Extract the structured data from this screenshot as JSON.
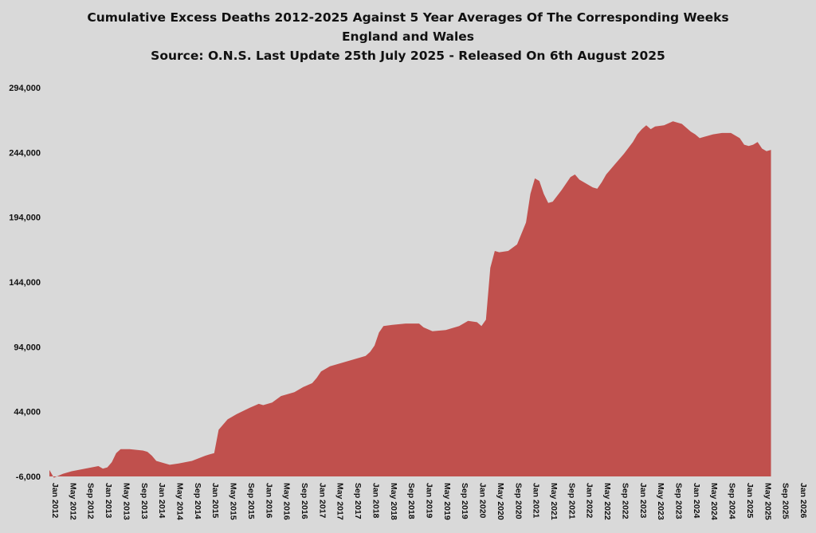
{
  "chart_data": {
    "type": "area",
    "title_lines": [
      "Cumulative Excess Deaths 2012-2025 Against 5 Year Averages Of The Corresponding Weeks",
      "England and Wales",
      "Source: O.N.S. Last Update 25th July 2025 - Released On 6th August 2025"
    ],
    "xlabel": "",
    "ylabel": "",
    "ylim": [
      -6000,
      294000
    ],
    "xlim": [
      "2012-01",
      "2026-01"
    ],
    "grid": false,
    "legend": "none",
    "colors": {
      "fill": "#c0504d",
      "background": "#d9d9d9",
      "text": "#111111"
    },
    "y_ticks": [
      "294,000",
      "244,000",
      "194,000",
      "144,000",
      "94,000",
      "44,000",
      "-6,000"
    ],
    "y_tick_values": [
      294000,
      244000,
      194000,
      144000,
      94000,
      44000,
      -6000
    ],
    "x_ticks": [
      "Jan 2012",
      "May 2012",
      "Sep 2012",
      "Jan 2013",
      "May 2013",
      "Sep 2013",
      "Jan 2014",
      "May 2014",
      "Sep 2014",
      "Jan 2015",
      "May 2015",
      "Sep 2015",
      "Jan 2016",
      "May 2016",
      "Sep 2016",
      "Jan 2017",
      "May 2017",
      "Sep 2017",
      "Jan 2018",
      "May 2018",
      "Sep 2018",
      "Jan 2019",
      "May 2019",
      "Sep 2019",
      "Jan 2020",
      "May 2020",
      "Sep 2020",
      "Jan 2021",
      "May 2021",
      "Sep 2021",
      "Jan 2022",
      "May 2022",
      "Sep 2022",
      "Jan 2023",
      "May 2023",
      "Sep 2023",
      "Jan 2024",
      "May 2024",
      "Sep 2024",
      "Jan 2025",
      "May 2025",
      "Sep 2025",
      "Jan 2026"
    ],
    "series": [
      {
        "x": [
          "2012-01",
          "2012-02",
          "2012-04",
          "2012-06",
          "2012-09",
          "2012-12",
          "2013-01",
          "2013-02",
          "2013-03",
          "2013-04",
          "2013-05",
          "2013-07",
          "2013-10",
          "2013-11",
          "2013-12",
          "2014-01",
          "2014-02",
          "2014-03",
          "2014-04",
          "2014-06",
          "2014-09",
          "2014-12",
          "2015-01",
          "2015-02",
          "2015-03",
          "2015-05",
          "2015-07",
          "2015-10",
          "2015-12",
          "2016-01",
          "2016-03",
          "2016-05",
          "2016-08",
          "2016-10",
          "2016-12",
          "2017-01",
          "2017-02",
          "2017-04",
          "2017-08",
          "2017-12",
          "2018-01",
          "2018-02",
          "2018-03",
          "2018-04",
          "2018-06",
          "2018-09",
          "2018-12",
          "2019-01",
          "2019-03",
          "2019-06",
          "2019-09",
          "2019-11",
          "2020-01",
          "2020-02",
          "2020-03",
          "2020-04",
          "2020-05",
          "2020-06",
          "2020-08",
          "2020-10",
          "2020-12",
          "2021-01",
          "2021-02",
          "2021-03",
          "2021-04",
          "2021-05",
          "2021-06",
          "2021-08",
          "2021-10",
          "2021-11",
          "2021-12",
          "2022-01",
          "2022-03",
          "2022-04",
          "2022-05",
          "2022-06",
          "2022-08",
          "2022-10",
          "2022-12",
          "2023-01",
          "2023-02",
          "2023-03",
          "2023-04",
          "2023-05",
          "2023-07",
          "2023-09",
          "2023-11",
          "2023-12",
          "2024-01",
          "2024-02",
          "2024-03",
          "2024-04",
          "2024-06",
          "2024-08",
          "2024-10",
          "2024-12",
          "2025-01",
          "2025-02",
          "2025-03",
          "2025-04",
          "2025-05",
          "2025-06",
          "2025-07"
        ],
        "values": [
          -1000,
          -7000,
          -4000,
          -2000,
          0,
          2000,
          0,
          1000,
          5000,
          12000,
          15000,
          15000,
          14000,
          13000,
          10000,
          6000,
          5000,
          4000,
          3000,
          4000,
          6000,
          10000,
          11000,
          12000,
          30000,
          38000,
          42000,
          47000,
          50000,
          49000,
          51000,
          56000,
          59000,
          63000,
          66000,
          70000,
          75000,
          79000,
          83000,
          87000,
          90000,
          95000,
          105000,
          110000,
          111000,
          112000,
          112000,
          109000,
          106000,
          107000,
          110000,
          114000,
          113000,
          110000,
          115000,
          155000,
          168000,
          167000,
          168000,
          173000,
          190000,
          212000,
          224000,
          222000,
          212000,
          205000,
          206000,
          215000,
          225000,
          227000,
          223000,
          221000,
          217000,
          216000,
          221000,
          227000,
          235000,
          243000,
          252000,
          258000,
          262000,
          265000,
          262000,
          264000,
          265000,
          268000,
          266000,
          263000,
          260000,
          258000,
          255000,
          256000,
          258000,
          259000,
          259000,
          255000,
          250000,
          249000,
          250000,
          252000,
          247000,
          245000,
          246000
        ]
      }
    ]
  }
}
